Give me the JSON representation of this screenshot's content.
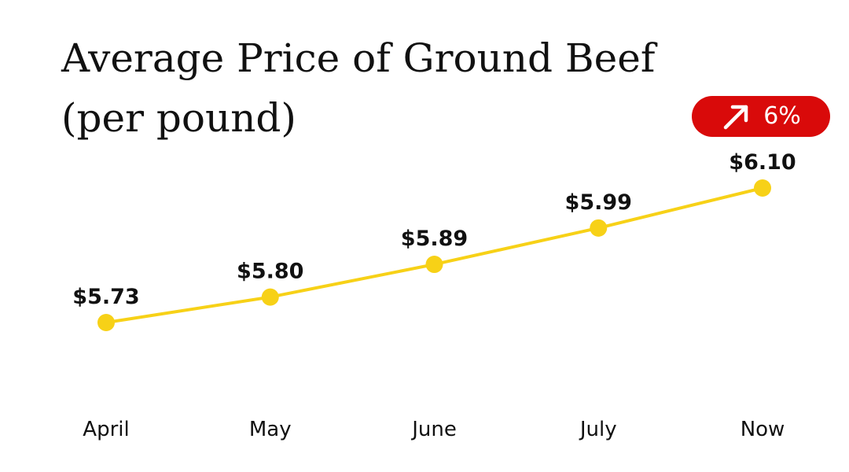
{
  "title": {
    "line1": "Average Price of Ground Beef",
    "line2": "(per pound)"
  },
  "badge": {
    "icon": "arrow-up-right-icon",
    "text": "6%",
    "color": "#d90a0a"
  },
  "colors": {
    "line": "#f7d117",
    "text": "#111111",
    "background": "#ffffff"
  },
  "chart_data": {
    "type": "line",
    "title": "Average Price of Ground Beef (per pound)",
    "categories": [
      "April",
      "May",
      "June",
      "July",
      "Now"
    ],
    "values": [
      5.73,
      5.8,
      5.89,
      5.99,
      6.1
    ],
    "data_labels": [
      "$5.73",
      "$5.80",
      "$5.89",
      "$5.99",
      "$6.10"
    ],
    "xlabel": "",
    "ylabel": "",
    "grid": false,
    "legend": "none"
  }
}
